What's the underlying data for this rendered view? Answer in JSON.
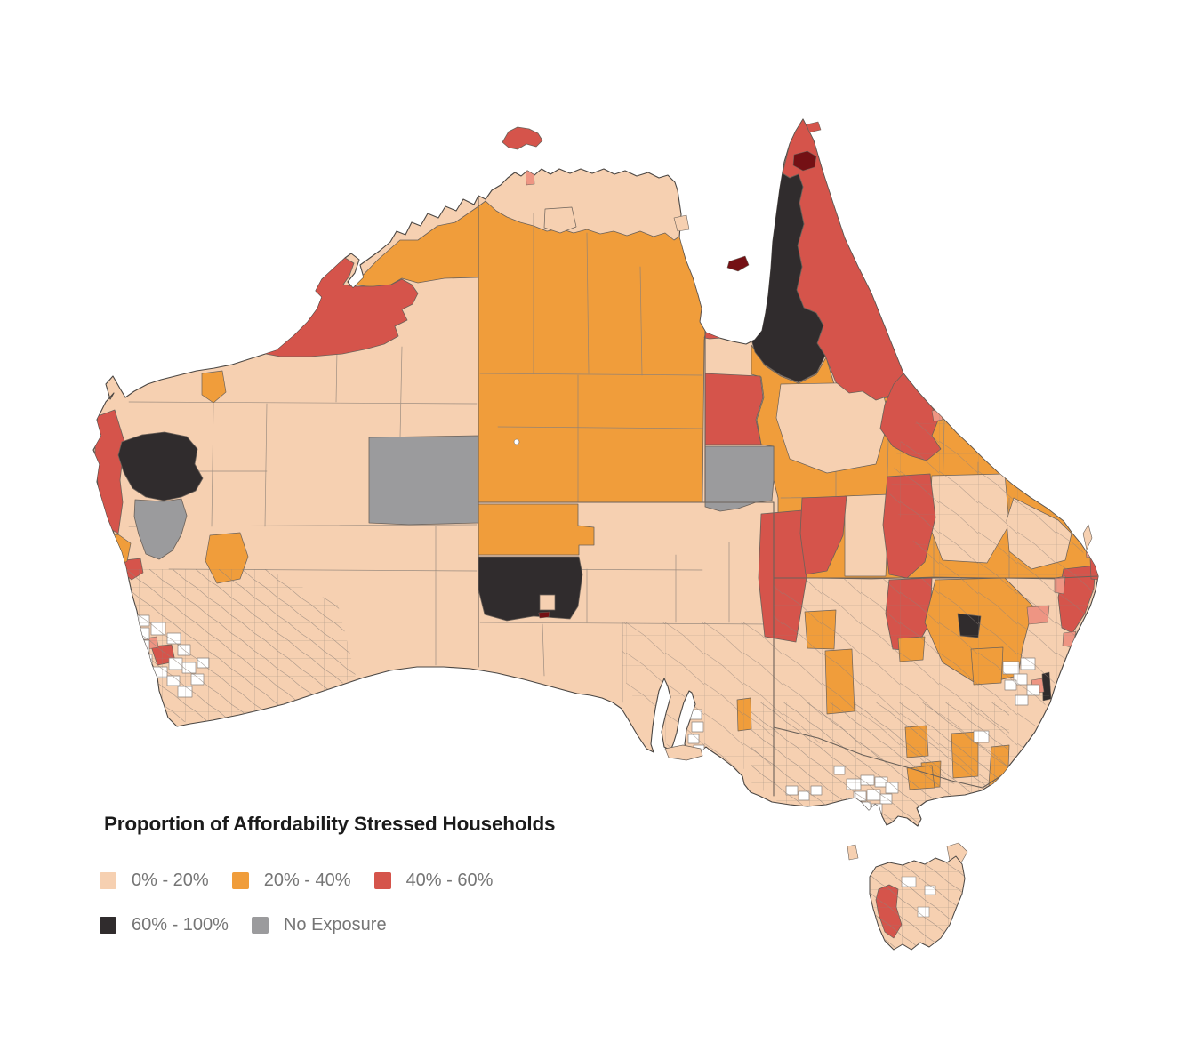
{
  "title": "Proportion of Affordability Stressed Households",
  "legend": {
    "items": [
      {
        "id": "cat1",
        "label": "0% - 20%"
      },
      {
        "id": "cat2",
        "label": "20% - 40%"
      },
      {
        "id": "cat3",
        "label": "40% - 60%"
      },
      {
        "id": "cat4",
        "label": "60% - 100%"
      },
      {
        "id": "cat5",
        "label": "No Exposure"
      }
    ]
  },
  "colors": {
    "cat1": "#F6D0B1",
    "cat2": "#F09D3B",
    "cat3": "#D5544B",
    "cat4": "#302C2D",
    "cat5": "#9B9B9D",
    "very_high": "#741014",
    "partial_salmon": "#EE9583",
    "no_data_white": "#FFFFFF",
    "region_border": "#6B6159",
    "coastline": "#4A4643",
    "faint_border": "#8D8178",
    "legend_text": "#757575",
    "title_text": "#1B1B1B"
  },
  "map": {
    "country": "Australia",
    "kind": "choropleth"
  }
}
